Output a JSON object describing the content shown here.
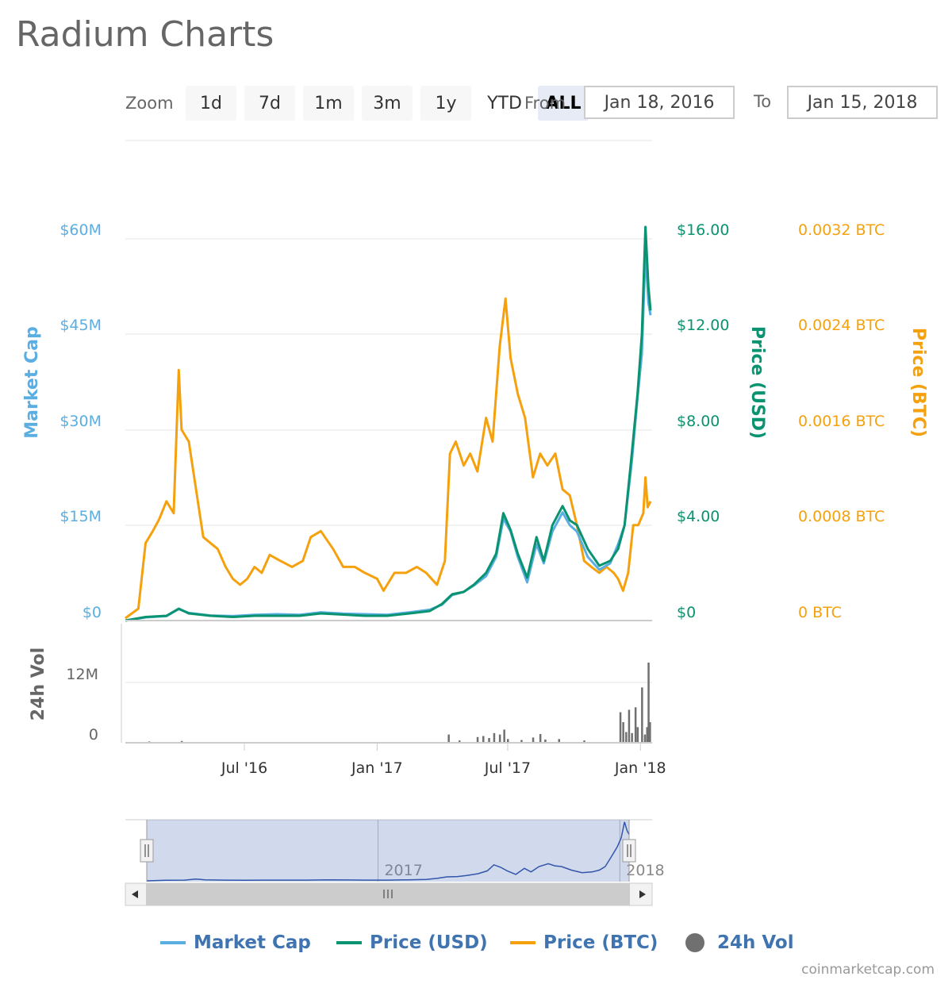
{
  "page": {
    "title": "Radium Charts",
    "credit": "coinmarketcap.com"
  },
  "zoom": {
    "label": "Zoom",
    "buttons": [
      "1d",
      "7d",
      "1m",
      "3m",
      "1y",
      "YTD",
      "ALL"
    ],
    "active": "ALL"
  },
  "range": {
    "from_label": "From",
    "from_value": "Jan 18, 2016",
    "to_label": "To",
    "to_value": "Jan 15, 2018"
  },
  "colors": {
    "market_cap": "#5aaee2",
    "price_usd": "#0a9370",
    "price_btc": "#f5a10e",
    "volume": "#707070",
    "legend_text": "#3f74b1"
  },
  "chart_data": {
    "type": "line",
    "x_range": [
      "2016-01-18",
      "2018-01-15"
    ],
    "xticks": [
      {
        "date": "2016-07-01",
        "label": "Jul '16"
      },
      {
        "date": "2017-01-01",
        "label": "Jan '17"
      },
      {
        "date": "2017-07-01",
        "label": "Jul '17"
      },
      {
        "date": "2018-01-01",
        "label": "Jan '18"
      }
    ],
    "axes": {
      "market_cap": {
        "title": "Market Cap",
        "ticks": [
          "$0",
          "$15M",
          "$30M",
          "$45M",
          "$60M"
        ],
        "range": [
          0,
          60000000
        ]
      },
      "price_usd": {
        "title": "Price (USD)",
        "ticks": [
          "$0",
          "$4.00",
          "$8.00",
          "$12.00",
          "$16.00"
        ],
        "range": [
          0,
          16
        ]
      },
      "price_btc": {
        "title": "Price (BTC)",
        "ticks": [
          "0 BTC",
          "0.0008 BTC",
          "0.0016 BTC",
          "0.0024 BTC",
          "0.0032 BTC"
        ],
        "range": [
          0,
          0.0032
        ]
      },
      "volume": {
        "title": "24h Vol",
        "ticks": [
          "0",
          "12M"
        ],
        "range": [
          0,
          12000000
        ]
      }
    },
    "series": [
      {
        "name": "Price (BTC)",
        "axis": "price_btc",
        "points": [
          [
            "2016-01-18",
            2e-05
          ],
          [
            "2016-02-05",
            0.0001
          ],
          [
            "2016-02-15",
            0.00065
          ],
          [
            "2016-02-25",
            0.00075
          ],
          [
            "2016-03-05",
            0.00085
          ],
          [
            "2016-03-15",
            0.001
          ],
          [
            "2016-03-25",
            0.0009
          ],
          [
            "2016-04-01",
            0.0021
          ],
          [
            "2016-04-05",
            0.0016
          ],
          [
            "2016-04-15",
            0.0015
          ],
          [
            "2016-04-25",
            0.0011
          ],
          [
            "2016-05-05",
            0.0007
          ],
          [
            "2016-05-15",
            0.00065
          ],
          [
            "2016-05-25",
            0.0006
          ],
          [
            "2016-06-05",
            0.00045
          ],
          [
            "2016-06-15",
            0.00035
          ],
          [
            "2016-06-25",
            0.0003
          ],
          [
            "2016-07-05",
            0.00035
          ],
          [
            "2016-07-15",
            0.00045
          ],
          [
            "2016-07-25",
            0.0004
          ],
          [
            "2016-08-05",
            0.00055
          ],
          [
            "2016-08-20",
            0.0005
          ],
          [
            "2016-09-05",
            0.00045
          ],
          [
            "2016-09-20",
            0.0005
          ],
          [
            "2016-10-01",
            0.0007
          ],
          [
            "2016-10-15",
            0.00075
          ],
          [
            "2016-11-01",
            0.0006
          ],
          [
            "2016-11-15",
            0.00045
          ],
          [
            "2016-12-01",
            0.00045
          ],
          [
            "2016-12-15",
            0.0004
          ],
          [
            "2017-01-01",
            0.00035
          ],
          [
            "2017-01-10",
            0.00025
          ],
          [
            "2017-01-25",
            0.0004
          ],
          [
            "2017-02-10",
            0.0004
          ],
          [
            "2017-02-25",
            0.00045
          ],
          [
            "2017-03-10",
            0.0004
          ],
          [
            "2017-03-25",
            0.0003
          ],
          [
            "2017-04-05",
            0.0005
          ],
          [
            "2017-04-12",
            0.0014
          ],
          [
            "2017-04-20",
            0.0015
          ],
          [
            "2017-05-01",
            0.0013
          ],
          [
            "2017-05-10",
            0.0014
          ],
          [
            "2017-05-20",
            0.00125
          ],
          [
            "2017-06-01",
            0.0017
          ],
          [
            "2017-06-10",
            0.0015
          ],
          [
            "2017-06-20",
            0.0023
          ],
          [
            "2017-06-28",
            0.0027
          ],
          [
            "2017-07-05",
            0.0022
          ],
          [
            "2017-07-15",
            0.0019
          ],
          [
            "2017-07-25",
            0.0017
          ],
          [
            "2017-08-05",
            0.0012
          ],
          [
            "2017-08-15",
            0.0014
          ],
          [
            "2017-08-25",
            0.0013
          ],
          [
            "2017-09-05",
            0.0014
          ],
          [
            "2017-09-15",
            0.0011
          ],
          [
            "2017-09-25",
            0.00105
          ],
          [
            "2017-10-05",
            0.0008
          ],
          [
            "2017-10-15",
            0.0005
          ],
          [
            "2017-10-25",
            0.00045
          ],
          [
            "2017-11-05",
            0.0004
          ],
          [
            "2017-11-15",
            0.00045
          ],
          [
            "2017-11-25",
            0.0004
          ],
          [
            "2017-12-01",
            0.00035
          ],
          [
            "2017-12-08",
            0.00025
          ],
          [
            "2017-12-15",
            0.0004
          ],
          [
            "2017-12-22",
            0.0008
          ],
          [
            "2017-12-29",
            0.0008
          ],
          [
            "2018-01-05",
            0.0009
          ],
          [
            "2018-01-08",
            0.0012
          ],
          [
            "2018-01-11",
            0.00095
          ],
          [
            "2018-01-15",
            0.001
          ]
        ]
      },
      {
        "name": "Market Cap",
        "axis": "market_cap",
        "points": [
          [
            "2016-01-18",
            0
          ],
          [
            "2016-02-15",
            500000
          ],
          [
            "2016-03-15",
            700000
          ],
          [
            "2016-04-01",
            1800000
          ],
          [
            "2016-04-15",
            1200000
          ],
          [
            "2016-05-15",
            800000
          ],
          [
            "2016-06-15",
            700000
          ],
          [
            "2016-07-15",
            900000
          ],
          [
            "2016-08-15",
            1000000
          ],
          [
            "2016-09-15",
            900000
          ],
          [
            "2016-10-15",
            1300000
          ],
          [
            "2016-11-15",
            1100000
          ],
          [
            "2016-12-15",
            1000000
          ],
          [
            "2017-01-15",
            900000
          ],
          [
            "2017-02-15",
            1300000
          ],
          [
            "2017-03-15",
            1700000
          ],
          [
            "2017-04-01",
            2500000
          ],
          [
            "2017-04-15",
            4000000
          ],
          [
            "2017-05-01",
            4500000
          ],
          [
            "2017-05-15",
            5500000
          ],
          [
            "2017-06-01",
            7000000
          ],
          [
            "2017-06-15",
            10000000
          ],
          [
            "2017-06-25",
            16000000
          ],
          [
            "2017-07-05",
            14000000
          ],
          [
            "2017-07-15",
            10000000
          ],
          [
            "2017-07-28",
            6000000
          ],
          [
            "2017-08-10",
            12000000
          ],
          [
            "2017-08-20",
            9000000
          ],
          [
            "2017-09-01",
            14000000
          ],
          [
            "2017-09-15",
            17000000
          ],
          [
            "2017-09-25",
            15000000
          ],
          [
            "2017-10-05",
            14000000
          ],
          [
            "2017-10-20",
            10000000
          ],
          [
            "2017-11-05",
            8000000
          ],
          [
            "2017-11-20",
            9000000
          ],
          [
            "2017-12-01",
            12000000
          ],
          [
            "2017-12-10",
            15000000
          ],
          [
            "2017-12-20",
            25000000
          ],
          [
            "2017-12-28",
            35000000
          ],
          [
            "2018-01-03",
            42000000
          ],
          [
            "2018-01-08",
            58000000
          ],
          [
            "2018-01-12",
            50000000
          ],
          [
            "2018-01-15",
            48000000
          ]
        ]
      },
      {
        "name": "Price (USD)",
        "axis": "price_usd",
        "points": [
          [
            "2016-01-18",
            0
          ],
          [
            "2016-02-15",
            0.15
          ],
          [
            "2016-03-15",
            0.2
          ],
          [
            "2016-04-01",
            0.5
          ],
          [
            "2016-04-15",
            0.3
          ],
          [
            "2016-05-15",
            0.2
          ],
          [
            "2016-06-15",
            0.15
          ],
          [
            "2016-07-15",
            0.2
          ],
          [
            "2016-08-15",
            0.2
          ],
          [
            "2016-09-15",
            0.2
          ],
          [
            "2016-10-15",
            0.3
          ],
          [
            "2016-11-15",
            0.25
          ],
          [
            "2016-12-15",
            0.2
          ],
          [
            "2017-01-15",
            0.2
          ],
          [
            "2017-02-15",
            0.3
          ],
          [
            "2017-03-15",
            0.4
          ],
          [
            "2017-04-01",
            0.7
          ],
          [
            "2017-04-15",
            1.1
          ],
          [
            "2017-05-01",
            1.2
          ],
          [
            "2017-05-15",
            1.5
          ],
          [
            "2017-06-01",
            2
          ],
          [
            "2017-06-15",
            2.8
          ],
          [
            "2017-06-25",
            4.5
          ],
          [
            "2017-07-05",
            3.8
          ],
          [
            "2017-07-15",
            2.8
          ],
          [
            "2017-07-28",
            1.8
          ],
          [
            "2017-08-10",
            3.5
          ],
          [
            "2017-08-20",
            2.5
          ],
          [
            "2017-09-01",
            4
          ],
          [
            "2017-09-15",
            4.8
          ],
          [
            "2017-09-25",
            4.2
          ],
          [
            "2017-10-05",
            4
          ],
          [
            "2017-10-20",
            3
          ],
          [
            "2017-11-05",
            2.3
          ],
          [
            "2017-11-20",
            2.5
          ],
          [
            "2017-12-01",
            3
          ],
          [
            "2017-12-10",
            4
          ],
          [
            "2017-12-20",
            7
          ],
          [
            "2017-12-28",
            9.5
          ],
          [
            "2018-01-03",
            12
          ],
          [
            "2018-01-08",
            16.5
          ],
          [
            "2018-01-12",
            14
          ],
          [
            "2018-01-15",
            13
          ]
        ]
      }
    ],
    "volume": {
      "name": "24h Vol",
      "axis": "volume",
      "bars": [
        [
          "2016-02-20",
          100000
        ],
        [
          "2016-04-05",
          200000
        ],
        [
          "2017-04-10",
          1500000
        ],
        [
          "2017-04-25",
          300000
        ],
        [
          "2017-05-20",
          1000000
        ],
        [
          "2017-05-28",
          1200000
        ],
        [
          "2017-06-05",
          800000
        ],
        [
          "2017-06-12",
          1800000
        ],
        [
          "2017-06-20",
          1500000
        ],
        [
          "2017-06-26",
          2500000
        ],
        [
          "2017-07-01",
          600000
        ],
        [
          "2017-07-20",
          400000
        ],
        [
          "2017-08-05",
          900000
        ],
        [
          "2017-08-15",
          1600000
        ],
        [
          "2017-08-22",
          500000
        ],
        [
          "2017-09-10",
          600000
        ],
        [
          "2017-10-15",
          300000
        ],
        [
          "2017-12-04",
          6000000
        ],
        [
          "2017-12-08",
          4000000
        ],
        [
          "2017-12-12",
          2000000
        ],
        [
          "2017-12-16",
          6500000
        ],
        [
          "2017-12-20",
          1800000
        ],
        [
          "2017-12-25",
          7000000
        ],
        [
          "2017-12-28",
          3000000
        ],
        [
          "2018-01-03",
          11000000
        ],
        [
          "2018-01-07",
          1500000
        ],
        [
          "2018-01-10",
          3000000
        ],
        [
          "2018-01-12",
          16000000
        ],
        [
          "2018-01-14",
          4000000
        ]
      ]
    },
    "navigator": {
      "year_labels": [
        {
          "date": "2017-01-01",
          "label": "2017"
        },
        {
          "date": "2018-01-01",
          "label": "2018"
        }
      ]
    },
    "legend": [
      {
        "name": "Market Cap",
        "marker": "line",
        "color": "#5aaee2"
      },
      {
        "name": "Price (USD)",
        "marker": "line",
        "color": "#0a9370"
      },
      {
        "name": "Price (BTC)",
        "marker": "line",
        "color": "#f5a10e"
      },
      {
        "name": "24h Vol",
        "marker": "dot",
        "color": "#707070"
      }
    ]
  }
}
